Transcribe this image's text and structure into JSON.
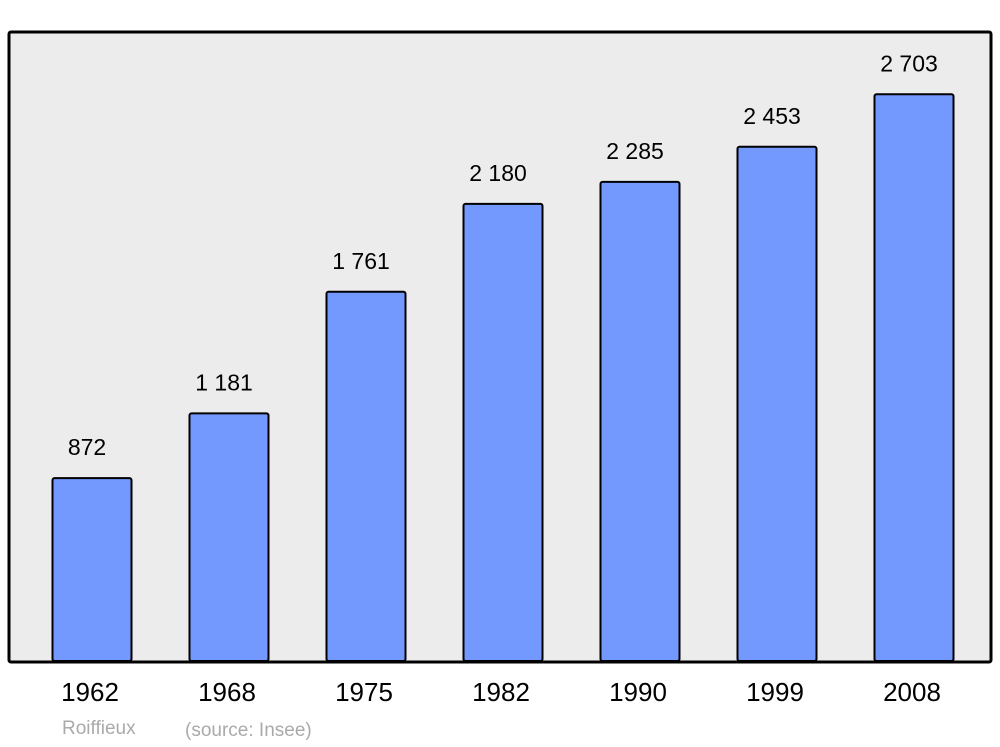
{
  "chart_data": {
    "type": "bar",
    "categories": [
      "1962",
      "1968",
      "1975",
      "1982",
      "1990",
      "1999",
      "2008"
    ],
    "values": [
      872,
      1181,
      1761,
      2180,
      2285,
      2453,
      2703
    ],
    "value_labels": [
      "872",
      "1 181",
      "1 761",
      "2 180",
      "2 285",
      "2 453",
      "2 703"
    ],
    "color": "#7399ff",
    "ylim": [
      0,
      3000
    ],
    "caption": "Roiffieux",
    "source": "(source: Insee)"
  }
}
